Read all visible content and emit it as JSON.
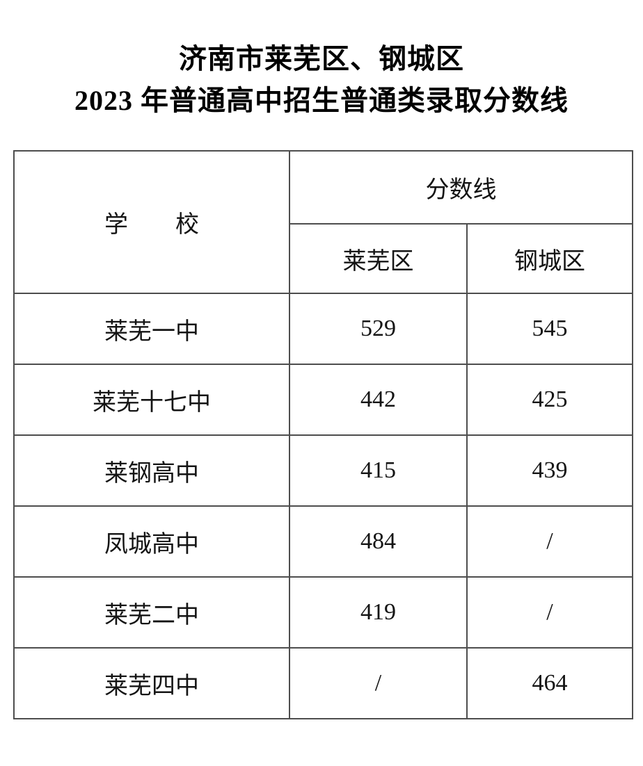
{
  "title": {
    "line1": "济南市莱芜区、钢城区",
    "line2": "2023 年普通高中招生普通类录取分数线"
  },
  "table": {
    "header": {
      "school": "学　　校",
      "score_line": "分数线",
      "district_laiwu": "莱芜区",
      "district_gangcheng": "钢城区"
    },
    "rows": [
      {
        "school": "莱芜一中",
        "laiwu": "529",
        "gangcheng": "545"
      },
      {
        "school": "莱芜十七中",
        "laiwu": "442",
        "gangcheng": "425"
      },
      {
        "school": "莱钢高中",
        "laiwu": "415",
        "gangcheng": "439"
      },
      {
        "school": "凤城高中",
        "laiwu": "484",
        "gangcheng": "/"
      },
      {
        "school": "莱芜二中",
        "laiwu": "419",
        "gangcheng": "/"
      },
      {
        "school": "莱芜四中",
        "laiwu": "/",
        "gangcheng": "464"
      }
    ]
  },
  "colors": {
    "background": "#ffffff",
    "text": "#000000",
    "table_border": "#4d4d4d"
  }
}
